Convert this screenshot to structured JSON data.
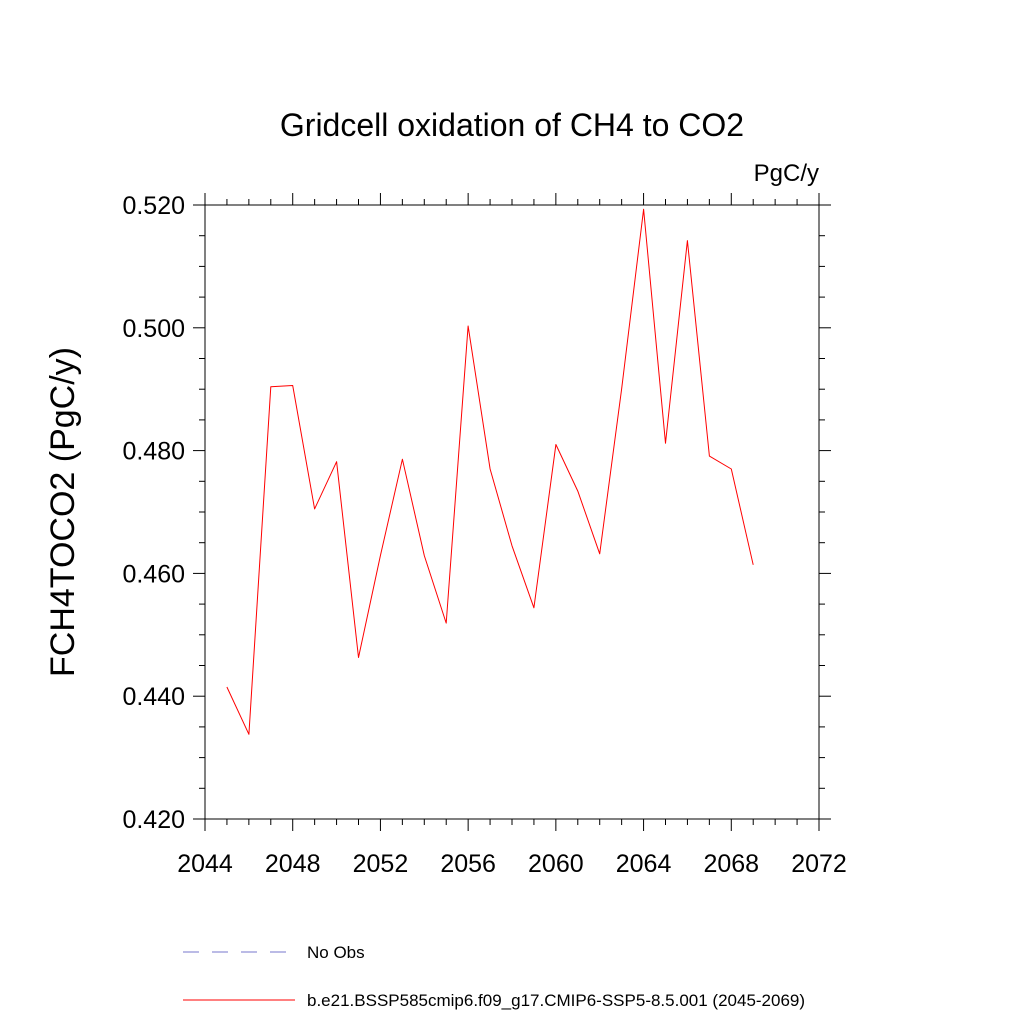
{
  "chart_data": {
    "type": "line",
    "title": "Gridcell oxidation of CH4 to CO2",
    "units": "PgC/y",
    "ylabel": "FCH4TOCO2  (PgC/y)",
    "xlabel": "",
    "xlim": [
      2044,
      2072
    ],
    "ylim": [
      0.42,
      0.52
    ],
    "xticks": [
      "2044",
      "2048",
      "2052",
      "2056",
      "2060",
      "2064",
      "2068",
      "2072"
    ],
    "yticks": [
      "0.420",
      "0.440",
      "0.460",
      "0.480",
      "0.500",
      "0.520"
    ],
    "grid": false,
    "series": [
      {
        "name": "b.e21.BSSP585cmip6.f09_g17.CMIP6-SSP5-8.5.001 (2045-2069)",
        "color": "#ff0000",
        "x": [
          2045,
          2046,
          2047,
          2048,
          2049,
          2050,
          2051,
          2052,
          2053,
          2054,
          2055,
          2056,
          2057,
          2058,
          2059,
          2060,
          2061,
          2062,
          2063,
          2064,
          2065,
          2066,
          2067,
          2068,
          2069
        ],
        "y": [
          0.4415,
          0.4338,
          0.4904,
          0.4906,
          0.4705,
          0.4782,
          0.4463,
          0.4629,
          0.4786,
          0.4629,
          0.4519,
          0.5003,
          0.477,
          0.4645,
          0.4544,
          0.481,
          0.4734,
          0.4632,
          0.49,
          0.5193,
          0.4812,
          0.5142,
          0.4791,
          0.477,
          0.4614
        ]
      }
    ],
    "legend": {
      "placement": "bottom-left",
      "entries": [
        {
          "label": "No Obs",
          "color": "#7777cc",
          "dashed": true
        },
        {
          "label": "b.e21.BSSP585cmip6.f09_g17.CMIP6-SSP5-8.5.001 (2045-2069)",
          "color": "#ff0000",
          "dashed": false
        }
      ]
    }
  }
}
